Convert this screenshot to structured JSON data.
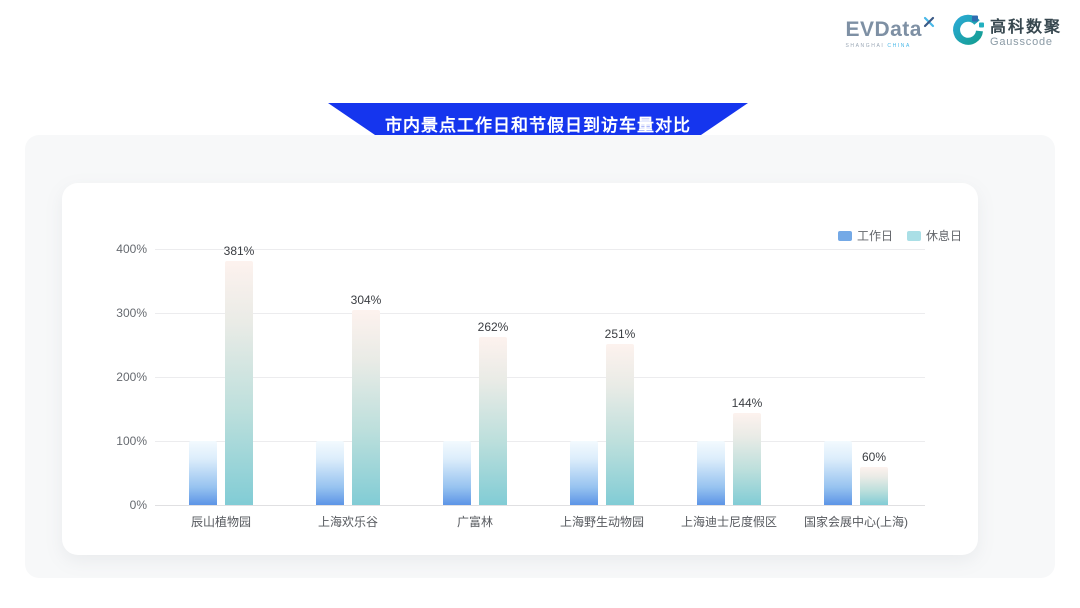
{
  "logos": {
    "evdata": {
      "text": "EVData",
      "sub_left": "SHANGHAI ",
      "sub_right": "CHINA",
      "x_icon": "x-mark-icon"
    },
    "gausscode": {
      "cn": "高科数聚",
      "en": "Gausscode",
      "icon": "gausscode-g-icon"
    }
  },
  "banner": {
    "title": "市内景点工作日和节假日到访车量对比",
    "color": "#1535ee"
  },
  "chart_data": {
    "type": "bar",
    "title": "市内景点工作日和节假日到访车量对比",
    "categories": [
      "辰山植物园",
      "上海欢乐谷",
      "广富林",
      "上海野生动物园",
      "上海迪士尼度假区",
      "国家会展中心(上海)"
    ],
    "series": [
      {
        "name": "工作日",
        "values": [
          100,
          100,
          100,
          100,
          100,
          100
        ],
        "color_top": "#f3fafe",
        "color_bottom": "#5c94e6",
        "legend_swatch": "#74a9e6"
      },
      {
        "name": "休息日",
        "values": [
          381,
          304,
          262,
          251,
          144,
          60
        ],
        "color_top": "#fdf2ee",
        "color_bottom": "#81ccd5",
        "legend_swatch": "#aadfe6"
      }
    ],
    "value_labels": [
      "381%",
      "304%",
      "262%",
      "251%",
      "144%",
      "60%"
    ],
    "xlabel": "",
    "ylabel": "",
    "ylim": [
      0,
      400
    ],
    "yticks": [
      "0%",
      "100%",
      "200%",
      "300%",
      "400%"
    ],
    "grid": true,
    "legend_position": "top-right"
  }
}
